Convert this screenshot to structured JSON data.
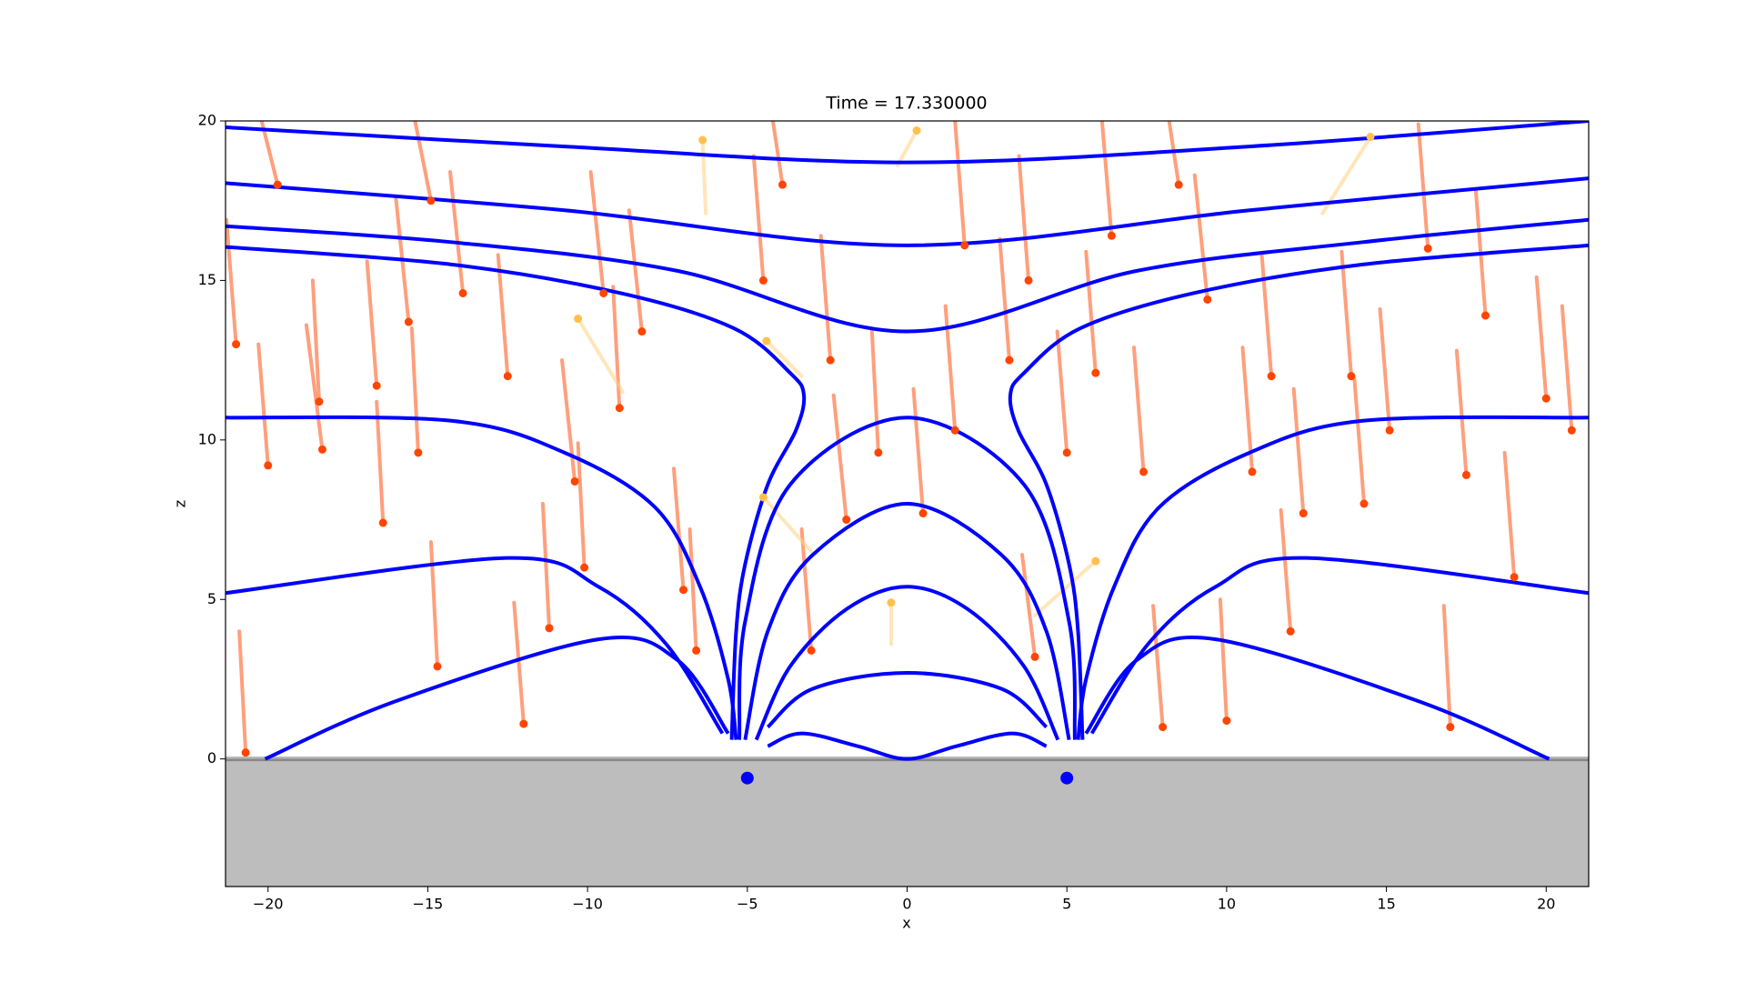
{
  "chart_data": {
    "type": "field-particles",
    "title": "Time = 17.330000",
    "x_label": "x",
    "y_label": "z",
    "xlim": [
      -21.33,
      21.33
    ],
    "ylim": [
      -4,
      20
    ],
    "xticks": [
      {
        "value": -20,
        "label": "−20"
      },
      {
        "value": -15,
        "label": "−15"
      },
      {
        "value": -10,
        "label": "−10"
      },
      {
        "value": -5,
        "label": "−5"
      },
      0,
      5,
      10,
      15,
      20
    ],
    "yticks": [
      0,
      5,
      10,
      15,
      20
    ],
    "ground": {
      "ylim": [
        -4,
        0
      ],
      "color": "#bdbdbd"
    },
    "field_color": "#0000ff",
    "field_lines": [
      {
        "x": [
          -21.33,
          -10.72,
          0,
          10.72,
          21.33
        ],
        "y": [
          19.8,
          19.2,
          18.7,
          19.2,
          20.0
        ]
      },
      {
        "x": [
          -21.33,
          -10.72,
          0,
          10.72,
          21.33
        ],
        "y": [
          18.05,
          17.2,
          16.1,
          17.2,
          18.2
        ]
      },
      {
        "x": [
          -21.33,
          -14.26,
          -7.19,
          0,
          7.19,
          14.26,
          21.33
        ],
        "y": [
          16.7,
          16.2,
          15.3,
          13.4,
          15.3,
          16.2,
          16.9
        ]
      },
      {
        "x": [
          -21.33,
          -14.26,
          -8.96,
          -5.42,
          -3.66,
          -3.23,
          -3.48,
          -4.36,
          -5.07,
          -5.35,
          -5.49
        ],
        "y": [
          16.05,
          15.5,
          14.6,
          13.5,
          12.1,
          11.4,
          10.3,
          8.6,
          6.1,
          4.0,
          0.6
        ]
      },
      {
        "x": [
          5.49,
          5.35,
          5.07,
          4.36,
          3.48,
          3.23,
          3.66,
          5.42,
          8.96,
          14.26,
          21.33
        ],
        "y": [
          0.6,
          4.0,
          6.1,
          8.6,
          10.3,
          11.4,
          12.1,
          13.5,
          14.6,
          15.5,
          16.1
        ]
      },
      {
        "x": [
          -21.33,
          -14.26,
          -10.72,
          -7.9,
          -6.48,
          -5.6,
          -5.35
        ],
        "y": [
          10.7,
          10.6,
          9.6,
          7.9,
          5.4,
          2.5,
          0.6
        ]
      },
      {
        "x": [
          5.35,
          5.6,
          6.48,
          7.9,
          10.72,
          14.26,
          21.33
        ],
        "y": [
          0.6,
          2.5,
          5.4,
          7.9,
          9.6,
          10.6,
          10.7
        ]
      },
      {
        "x": [
          -21.33,
          -12.49,
          -9.66,
          -7.54,
          -5.78
        ],
        "y": [
          5.2,
          6.3,
          5.4,
          3.6,
          0.8
        ]
      },
      {
        "x": [
          5.78,
          7.54,
          9.66,
          12.49,
          21.33
        ],
        "y": [
          0.8,
          3.6,
          5.4,
          6.3,
          5.2
        ]
      },
      {
        "x": [
          -20.09,
          -16.03,
          -9.66,
          -7.19,
          -5.6
        ],
        "y": [
          0,
          1.8,
          3.75,
          3.1,
          0.8
        ]
      },
      {
        "x": [
          5.6,
          7.19,
          9.66,
          16.03,
          20.09
        ],
        "y": [
          0.8,
          3.1,
          3.75,
          1.8,
          0
        ]
      },
      {
        "x": [
          -5.25,
          -5.07,
          -3.66,
          0,
          3.66,
          5.07,
          5.25
        ],
        "y": [
          0.6,
          4.3,
          8.6,
          10.7,
          8.6,
          4.3,
          0.6
        ]
      },
      {
        "x": [
          -5.07,
          -4.36,
          -2.95,
          0,
          2.95,
          4.36,
          5.07
        ],
        "y": [
          0.6,
          4.0,
          6.4,
          8.0,
          6.4,
          4.0,
          0.6
        ]
      },
      {
        "x": [
          -4.72,
          -3.66,
          -1.89,
          0,
          1.89,
          3.66,
          4.72
        ],
        "y": [
          0.6,
          2.9,
          4.7,
          5.4,
          4.7,
          2.9,
          0.6
        ]
      },
      {
        "x": [
          -4.36,
          -2.95,
          0,
          2.95,
          4.36
        ],
        "y": [
          1.0,
          2.2,
          2.7,
          2.2,
          1.0
        ]
      },
      {
        "x": [
          -4.36,
          -3.3,
          -1.54,
          0,
          1.54,
          3.3,
          4.36
        ],
        "y": [
          0.4,
          0.8,
          0.4,
          0.0,
          0.4,
          0.8,
          0.4
        ]
      }
    ],
    "particle_groups": [
      {
        "trail_color": "#ff7f50",
        "head_color": "#ff4500",
        "x": [
          -21.0,
          -20.0,
          -19.7,
          -18.4,
          -18.3,
          -16.6,
          -16.4,
          -15.6,
          -15.3,
          -14.9,
          -14.7,
          -13.9,
          -12.5,
          -11.2,
          -10.4,
          -10.1,
          -9.5,
          -9.0,
          -8.3,
          -7.0,
          -6.6,
          -4.5,
          -3.9,
          -2.4,
          -1.9,
          -0.9,
          0.5,
          1.5,
          1.8,
          3.2,
          3.8,
          5.0,
          5.9,
          6.4,
          7.4,
          8.5,
          9.4,
          10.0,
          10.8,
          11.4,
          12.4,
          13.9,
          14.3,
          15.1,
          16.3,
          17.5,
          18.1,
          19.0,
          20.0,
          20.8,
          12.0,
          17.0,
          -12.0,
          -3.0,
          8.0,
          -20.7,
          4.0
        ],
        "y": [
          13.0,
          9.2,
          18.0,
          11.2,
          9.7,
          11.7,
          7.4,
          13.7,
          9.6,
          17.5,
          2.9,
          14.6,
          12.0,
          4.1,
          8.7,
          6.0,
          14.6,
          11.0,
          13.4,
          5.3,
          3.4,
          15.0,
          18.0,
          12.5,
          7.5,
          9.6,
          7.7,
          10.3,
          16.1,
          12.5,
          15.0,
          9.6,
          12.1,
          16.4,
          9.0,
          18.0,
          14.4,
          1.2,
          9.0,
          12.0,
          7.7,
          12.0,
          8.0,
          10.3,
          16.0,
          8.9,
          13.9,
          5.7,
          11.3,
          10.3,
          4.0,
          1.0,
          1.1,
          3.4,
          1.0,
          0.2,
          3.2
        ],
        "x_start": [
          -21.3,
          -20.3,
          -20.2,
          -18.6,
          -18.8,
          -16.9,
          -16.6,
          -16.0,
          -15.5,
          -15.4,
          -14.9,
          -14.3,
          -12.8,
          -11.4,
          -10.8,
          -10.3,
          -9.9,
          -9.2,
          -8.7,
          -7.3,
          -6.8,
          -4.8,
          -4.2,
          -2.7,
          -2.3,
          -1.1,
          0.2,
          1.2,
          1.5,
          2.9,
          3.5,
          4.7,
          5.6,
          6.1,
          7.1,
          8.2,
          9.0,
          9.8,
          10.5,
          11.1,
          12.1,
          13.6,
          14.0,
          14.8,
          16.0,
          17.2,
          17.8,
          18.7,
          19.7,
          20.5,
          11.7,
          16.8,
          -12.3,
          -3.3,
          7.7,
          -20.9,
          3.6
        ],
        "y_start": [
          16.9,
          13.0,
          20.0,
          15.0,
          13.6,
          15.6,
          11.2,
          17.6,
          13.5,
          20.0,
          6.8,
          18.4,
          15.8,
          8.0,
          12.5,
          9.9,
          18.4,
          14.8,
          17.2,
          9.1,
          7.2,
          18.9,
          20.0,
          16.4,
          11.4,
          13.4,
          11.6,
          14.2,
          20.0,
          16.3,
          18.9,
          13.4,
          15.9,
          20.0,
          12.9,
          20.0,
          18.3,
          5.0,
          12.9,
          15.8,
          11.6,
          15.9,
          11.9,
          14.1,
          19.9,
          12.8,
          17.8,
          9.6,
          15.1,
          14.2,
          7.8,
          4.8,
          4.9,
          7.2,
          4.8,
          4.0,
          6.4
        ]
      },
      {
        "trail_color": "#ffd27f",
        "head_color": "#ffc04d",
        "x": [
          -10.3,
          -6.4,
          -4.5,
          -0.5,
          5.9,
          14.5,
          0.3,
          -4.4
        ],
        "y": [
          13.8,
          19.4,
          8.2,
          4.9,
          6.2,
          19.5,
          19.7,
          13.1
        ],
        "x_start": [
          -8.9,
          -6.3,
          -3.0,
          -0.5,
          4.0,
          13.0,
          -0.3,
          -3.3
        ],
        "y_start": [
          11.5,
          17.1,
          6.5,
          3.6,
          4.5,
          17.1,
          18.6,
          12.0
        ]
      }
    ],
    "sources": {
      "x": [
        -5,
        5
      ],
      "y": [
        -0.6,
        -0.6
      ],
      "color": "#0000ff"
    }
  }
}
